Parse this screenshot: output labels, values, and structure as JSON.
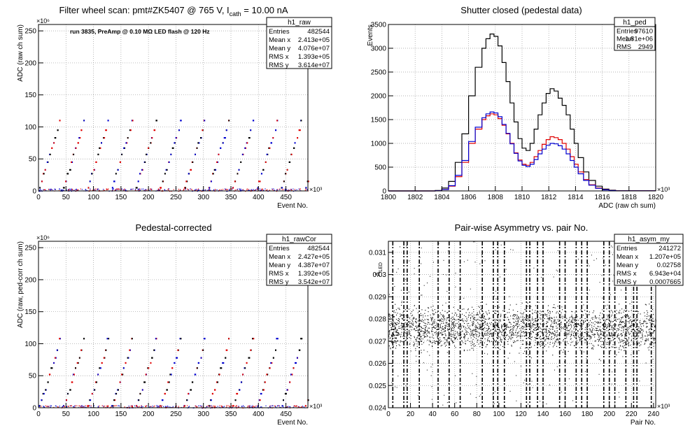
{
  "panels": [
    {
      "title": "Filter wheel scan: pmt#ZK5407 @   765 V, I",
      "title_sub": "cath",
      "title_after": " = 10.00 nA",
      "annotation": "run 3835, PreAmp @ 0.10 MΩ LED flash @  120 Hz",
      "stats": {
        "name": "h1_raw",
        "rows": [
          [
            "Entries",
            "482544"
          ],
          [
            "Mean x",
            "2.413e+05"
          ],
          [
            "Mean y",
            "4.076e+07"
          ],
          [
            "RMS x",
            "1.393e+05"
          ],
          [
            "RMS y",
            "3.614e+07"
          ]
        ]
      },
      "xlabel": "Event No.",
      "ylabel": "ADC (raw ch sum)",
      "x_exponent": "×10³",
      "y_exponent": "×10⁶"
    },
    {
      "title": "Shutter closed (pedestal data)",
      "stats": {
        "name": "h1_ped",
        "rows": [
          [
            "Entries",
            "97610"
          ],
          [
            "Mean",
            "1.81e+06"
          ],
          [
            "RMS",
            "2949"
          ]
        ]
      },
      "xlabel": "ADC (raw ch sum)",
      "ylabel": "Events",
      "x_exponent": "×10³"
    },
    {
      "title": "Pedestal-corrected",
      "stats": {
        "name": "h1_rawCor",
        "rows": [
          [
            "Entries",
            "482544"
          ],
          [
            "Mean x",
            "2.427e+05"
          ],
          [
            "Mean y",
            "4.387e+07"
          ],
          [
            "RMS x",
            "1.392e+05"
          ],
          [
            "RMS y",
            "3.542e+07"
          ]
        ]
      },
      "xlabel": "Event No.",
      "ylabel": "ADC (raw, ped-corr ch sum)",
      "x_exponent": "×10³",
      "y_exponent": "×10⁶"
    },
    {
      "title": "Pair-wise Asymmetry vs. pair No.",
      "stats": {
        "name": "h1_asym_my",
        "rows": [
          [
            "Entries",
            "241272"
          ],
          [
            "Mean x",
            "1.207e+05"
          ],
          [
            "Mean y",
            "0.02758"
          ],
          [
            "RMS x",
            "6.943e+04"
          ],
          [
            "RMS y",
            "0.0007665"
          ]
        ]
      },
      "xlabel": "Pair No.",
      "ylabel": "A",
      "ylabel_sub": "LED",
      "x_exponent": "×10³"
    }
  ],
  "colors": {
    "black": "#000000",
    "red": "#e00000",
    "blue": "#0000d0",
    "grid": "#888888"
  },
  "chart_data": [
    {
      "type": "scatter",
      "xlim": [
        0,
        490
      ],
      "ylim": [
        0,
        260
      ],
      "xticks": [
        0,
        50,
        100,
        150,
        200,
        250,
        300,
        350,
        400,
        450
      ],
      "yticks": [
        0,
        50,
        100,
        150,
        200,
        250
      ],
      "grid": true,
      "levels": [
        5,
        15,
        27,
        33,
        45,
        57,
        67,
        75,
        83,
        95,
        110
      ],
      "period": 44,
      "series_colors": [
        "#0000d0",
        "#e00000",
        "#000000"
      ]
    },
    {
      "type": "line",
      "xlim": [
        1800,
        1820
      ],
      "ylim": [
        0,
        3500
      ],
      "xticks": [
        1800,
        1802,
        1804,
        1806,
        1808,
        1810,
        1812,
        1814,
        1816,
        1818,
        1820
      ],
      "yticks": [
        0,
        500,
        1000,
        1500,
        2000,
        2500,
        3000,
        3500
      ],
      "grid": true,
      "x": [
        1800,
        1803,
        1803.5,
        1804,
        1804.5,
        1805,
        1805.5,
        1806,
        1806.5,
        1807,
        1807.3,
        1807.6,
        1807.9,
        1808.2,
        1808.5,
        1808.8,
        1809.1,
        1809.4,
        1809.7,
        1810,
        1810.3,
        1810.6,
        1810.9,
        1811.2,
        1811.5,
        1811.8,
        1812.1,
        1812.4,
        1812.7,
        1813,
        1813.3,
        1813.6,
        1813.9,
        1814.2,
        1814.6,
        1815,
        1815.5,
        1816,
        1816.5,
        1817,
        1820
      ],
      "series": [
        {
          "name": "",
          "color": "#000000",
          "values": [
            0,
            0,
            10,
            60,
            200,
            600,
            1200,
            2000,
            2600,
            3000,
            3200,
            3300,
            3250,
            3050,
            2700,
            2300,
            1850,
            1450,
            1100,
            900,
            850,
            1000,
            1300,
            1600,
            1850,
            2050,
            2150,
            2100,
            1950,
            1800,
            1600,
            1300,
            1000,
            700,
            400,
            220,
            100,
            40,
            15,
            5,
            0
          ]
        },
        {
          "name": "",
          "color": "#e00000",
          "values": [
            0,
            0,
            5,
            30,
            100,
            300,
            600,
            1000,
            1300,
            1500,
            1580,
            1620,
            1600,
            1520,
            1380,
            1200,
            1000,
            800,
            650,
            560,
            540,
            600,
            720,
            850,
            980,
            1080,
            1140,
            1120,
            1080,
            1000,
            880,
            720,
            560,
            400,
            240,
            130,
            60,
            25,
            8,
            2,
            0
          ]
        },
        {
          "name": "",
          "color": "#0000d0",
          "values": [
            0,
            0,
            5,
            30,
            110,
            330,
            640,
            1040,
            1340,
            1540,
            1620,
            1660,
            1640,
            1560,
            1400,
            1210,
            990,
            790,
            630,
            540,
            510,
            560,
            660,
            780,
            880,
            960,
            1000,
            990,
            950,
            880,
            780,
            640,
            500,
            360,
            220,
            120,
            55,
            22,
            7,
            2,
            0
          ]
        }
      ]
    },
    {
      "type": "scatter",
      "xlim": [
        0,
        490
      ],
      "ylim": [
        0,
        260
      ],
      "xticks": [
        0,
        50,
        100,
        150,
        200,
        250,
        300,
        350,
        400,
        450
      ],
      "yticks": [
        0,
        50,
        100,
        150,
        200,
        250
      ],
      "grid": true,
      "levels": [
        3,
        12,
        22,
        28,
        40,
        52,
        62,
        70,
        78,
        90,
        108
      ],
      "period": 44,
      "series_colors": [
        "#0000d0",
        "#e00000",
        "#000000"
      ]
    },
    {
      "type": "scatter",
      "xlim": [
        0,
        242
      ],
      "ylim": [
        0.024,
        0.0315
      ],
      "xticks": [
        0,
        20,
        40,
        60,
        80,
        100,
        120,
        140,
        160,
        180,
        200,
        220,
        240
      ],
      "yticks": [
        0.024,
        0.025,
        0.026,
        0.027,
        0.028,
        0.029,
        0.03,
        0.031
      ],
      "ytick_labels": [
        "0.024",
        "0.025",
        "0.026",
        "0.027",
        "0.028",
        "0.029",
        "0.03",
        "0.031"
      ],
      "grid": true,
      "band_center": 0.02758,
      "band_halfwidth": 0.0007,
      "spikes": [
        4,
        14,
        17,
        28,
        45,
        55,
        65,
        85,
        95,
        99,
        105,
        125,
        128,
        135,
        140,
        155,
        160,
        170,
        175,
        180,
        195,
        200,
        205,
        215,
        222,
        225,
        238
      ]
    }
  ]
}
